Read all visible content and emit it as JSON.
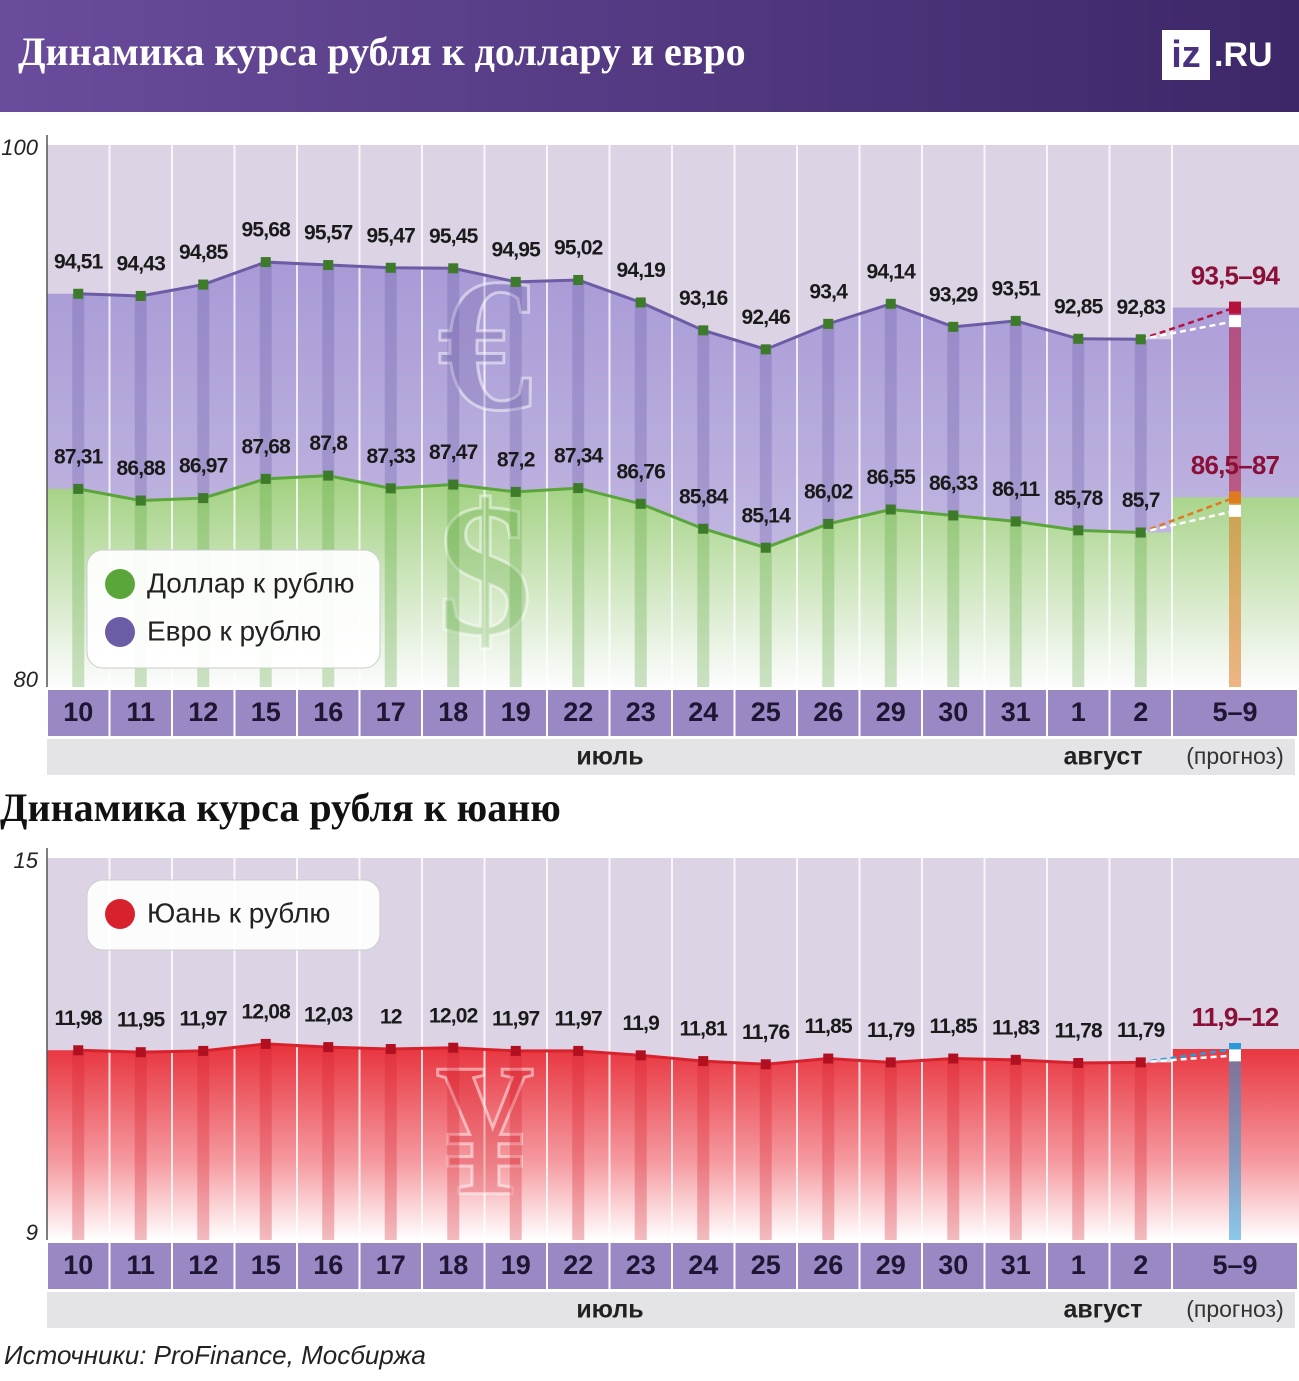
{
  "header": {
    "logo": {
      "main": "iz",
      "suffix": ".RU"
    }
  },
  "chart_data": [
    {
      "type": "line",
      "title": "Динамика курса рубля к доллару и евро",
      "categories": [
        "10",
        "11",
        "12",
        "15",
        "16",
        "17",
        "18",
        "19",
        "22",
        "23",
        "24",
        "25",
        "26",
        "29",
        "30",
        "31",
        "1",
        "2",
        "5–9"
      ],
      "category_groups": [
        "июль",
        "август",
        "(прогноз)"
      ],
      "ylim": [
        80,
        100
      ],
      "yticks": [
        80,
        100
      ],
      "series": [
        {
          "name": "Доллар к рублю",
          "color": "#5aa63a",
          "marker_color": "#3d7a2a",
          "symbol": "$",
          "values": [
            87.31,
            86.88,
            86.97,
            87.68,
            87.8,
            87.33,
            87.47,
            87.2,
            87.34,
            86.76,
            85.84,
            85.14,
            86.02,
            86.55,
            86.33,
            86.11,
            85.78,
            85.7,
            null
          ],
          "value_labels": [
            "87,31",
            "86,88",
            "86,97",
            "87,68",
            "87,8",
            "87,33",
            "87,47",
            "87,2",
            "87,34",
            "86,76",
            "85,84",
            "85,14",
            "86,02",
            "86,55",
            "86,33",
            "86,11",
            "85,78",
            "85,7",
            null
          ],
          "forecast": {
            "low": 86.5,
            "high": 87,
            "label": "86,5–87",
            "color": "#e07a1e"
          }
        },
        {
          "name": "Евро к рублю",
          "color": "#6b5ca5",
          "marker_color": "#3d7a2a",
          "symbol": "€",
          "values": [
            94.51,
            94.43,
            94.85,
            95.68,
            95.57,
            95.47,
            95.45,
            94.95,
            95.02,
            94.19,
            93.16,
            92.46,
            93.4,
            94.14,
            93.29,
            93.51,
            92.85,
            92.83,
            null
          ],
          "value_labels": [
            "94,51",
            "94,43",
            "94,85",
            "95,68",
            "95,57",
            "95,47",
            "95,45",
            "94,95",
            "95,02",
            "94,19",
            "93,16",
            "92,46",
            "93,4",
            "94,14",
            "93,29",
            "93,51",
            "92,85",
            "92,83",
            null
          ],
          "forecast": {
            "low": 93.5,
            "high": 94,
            "label": "93,5–94",
            "color": "#b5123c"
          }
        }
      ]
    },
    {
      "type": "line",
      "title": "Динамика курса рубля к юаню",
      "categories": [
        "10",
        "11",
        "12",
        "15",
        "16",
        "17",
        "18",
        "19",
        "22",
        "23",
        "24",
        "25",
        "26",
        "29",
        "30",
        "31",
        "1",
        "2",
        "5–9"
      ],
      "category_groups": [
        "июль",
        "август",
        "(прогноз)"
      ],
      "ylim": [
        9,
        15
      ],
      "yticks": [
        9,
        15
      ],
      "series": [
        {
          "name": "Юань к рублю",
          "color": "#d7222e",
          "marker_color": "#b01020",
          "symbol": "¥",
          "values": [
            11.98,
            11.95,
            11.97,
            12.08,
            12.03,
            12,
            12.02,
            11.97,
            11.97,
            11.9,
            11.81,
            11.76,
            11.85,
            11.79,
            11.85,
            11.83,
            11.78,
            11.79,
            null
          ],
          "value_labels": [
            "11,98",
            "11,95",
            "11,97",
            "12,08",
            "12,03",
            "12",
            "12,02",
            "11,97",
            "11,97",
            "11,9",
            "11,81",
            "11,76",
            "11,85",
            "11,79",
            "11,85",
            "11,83",
            "11,78",
            "11,79",
            null
          ],
          "forecast": {
            "low": 11.9,
            "high": 12,
            "label": "11,9–12",
            "color": "#2a9ad8"
          }
        }
      ]
    }
  ],
  "source": "Источники: ProFinance, Мосбиржа"
}
